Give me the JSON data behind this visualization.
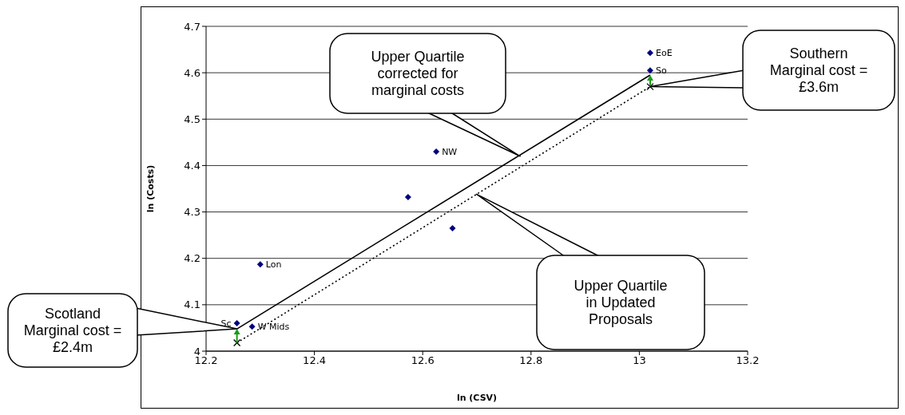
{
  "chart_data": {
    "type": "scatter",
    "xlabel": "ln (CSV)",
    "ylabel": "ln (Costs)",
    "xlim": [
      12.2,
      13.2
    ],
    "xticks": [
      12.2,
      12.4,
      12.6,
      12.8,
      13,
      13.2
    ],
    "ylim": [
      4,
      4.7
    ],
    "yticks": [
      4,
      4.1,
      4.2,
      4.3,
      4.4,
      4.5,
      4.6,
      4.7
    ],
    "grid": "y",
    "legend": false,
    "series": [
      {
        "type": "scatter",
        "color": "#000080",
        "marker": "diamond",
        "x": [
          13.02,
          13.02,
          12.625,
          12.573,
          12.655,
          12.3,
          12.257,
          12.285
        ],
        "values": [
          4.643,
          4.605,
          4.43,
          4.332,
          4.265,
          4.187,
          4.06,
          4.053
        ]
      },
      {
        "type": "line",
        "color": "#000000",
        "marker": "none",
        "line_style": "solid",
        "x": [
          12.257,
          13.02
        ],
        "values": [
          4.048,
          4.595
        ]
      },
      {
        "type": "line",
        "color": "#000000",
        "marker": "cross",
        "line_style": "dotted",
        "x": [
          12.257,
          13.02
        ],
        "values": [
          4.018,
          4.57
        ]
      }
    ],
    "annotations": [
      {
        "text": "EoE",
        "x": 13.02,
        "y": 4.643
      },
      {
        "text": "So",
        "x": 13.02,
        "y": 4.605
      },
      {
        "text": "NW",
        "x": 12.625,
        "y": 4.43
      },
      {
        "text": "Lon",
        "x": 12.3,
        "y": 4.187
      },
      {
        "text": "Sc",
        "x": 12.257,
        "y": 4.06
      },
      {
        "text": "W Mids",
        "x": 12.285,
        "y": 4.053
      },
      {
        "text": "Scotland Marginal cost = £2.4m",
        "x": 12.257,
        "y": 4.048
      },
      "Southern Marginal cost = £3.6m",
      {
        "text": "Upper Quartile corrected for marginal costs",
        "x": 12.78,
        "y": 4.42
      },
      "Upper Quartile in Updated Proposals"
    ]
  }
}
